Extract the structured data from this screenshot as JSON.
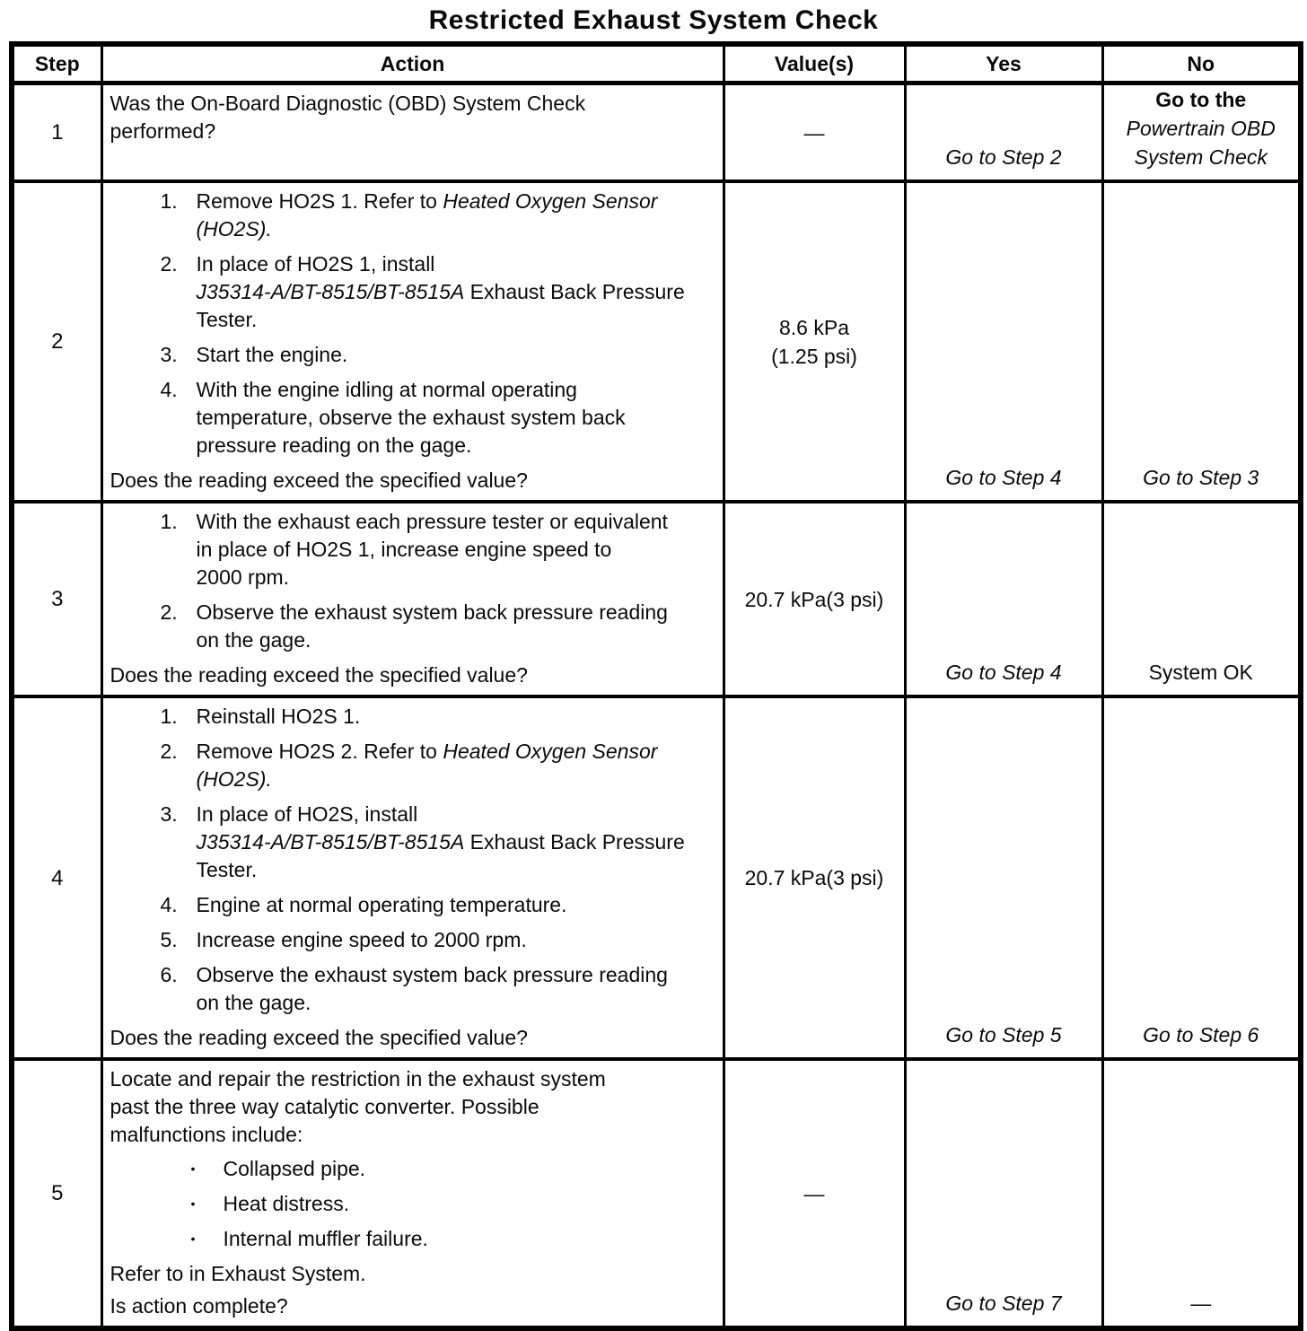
{
  "title": "Restricted Exhaust System Check",
  "bullet_glyph": "•",
  "table": {
    "headers": [
      "Step",
      "Action",
      "Value(s)",
      "Yes",
      "No"
    ],
    "rows": [
      {
        "step": "1",
        "action": {
          "intro": [
            {
              "text": "Was the On-Board Diagnostic (OBD) System Check\nperformed?",
              "style": "normal"
            }
          ],
          "list": null,
          "outro": []
        },
        "value": [
          "—"
        ],
        "yes": [
          {
            "text": "Go to Step 2",
            "style": "italic"
          }
        ],
        "no": [
          {
            "text": "Go to the",
            "style": "bold"
          },
          {
            "text": "Powertrain OBD",
            "style": "italic"
          },
          {
            "text": "System Check",
            "style": "italic"
          }
        ]
      },
      {
        "step": "2",
        "action": {
          "intro": null,
          "list": {
            "marker": "decimal",
            "items": [
              [
                {
                  "text": "Remove HO2S 1. Refer to ",
                  "style": "normal"
                },
                {
                  "text": "Heated Oxygen Sensor\n(HO2S).",
                  "style": "italic"
                }
              ],
              [
                {
                  "text": "In place of HO2S 1, install\n",
                  "style": "normal"
                },
                {
                  "text": "J35314-A/BT-8515/BT-8515A",
                  "style": "italic"
                },
                {
                  "text": " Exhaust Back Pressure\nTester.",
                  "style": "normal"
                }
              ],
              [
                {
                  "text": "Start the engine.",
                  "style": "normal"
                }
              ],
              [
                {
                  "text": "With the engine idling at normal operating\ntemperature, observe the exhaust system back\npressure reading on the gage.",
                  "style": "normal"
                }
              ]
            ]
          },
          "outro": [
            "Does the reading exceed the specified value?"
          ]
        },
        "value": [
          "8.6 kPa",
          "(1.25 psi)"
        ],
        "yes": [
          {
            "text": "Go to Step 4",
            "style": "italic"
          }
        ],
        "no": [
          {
            "text": "Go to Step 3",
            "style": "italic"
          }
        ]
      },
      {
        "step": "3",
        "action": {
          "intro": null,
          "list": {
            "marker": "decimal",
            "items": [
              [
                {
                  "text": "With the exhaust each pressure tester or equivalent\nin place of HO2S 1, increase engine speed to\n2000 rpm.",
                  "style": "normal"
                }
              ],
              [
                {
                  "text": "Observe the exhaust system back pressure reading\non the gage.",
                  "style": "normal"
                }
              ]
            ]
          },
          "outro": [
            "Does the reading exceed the specified value?"
          ]
        },
        "value": [
          "20.7 kPa(3 psi)"
        ],
        "yes": [
          {
            "text": "Go to Step 4",
            "style": "italic"
          }
        ],
        "no": [
          {
            "text": "System OK",
            "style": "normal"
          }
        ]
      },
      {
        "step": "4",
        "action": {
          "intro": null,
          "list": {
            "marker": "decimal",
            "items": [
              [
                {
                  "text": "Reinstall HO2S 1.",
                  "style": "normal"
                }
              ],
              [
                {
                  "text": "Remove HO2S 2. Refer to ",
                  "style": "normal"
                },
                {
                  "text": "Heated Oxygen Sensor\n(HO2S).",
                  "style": "italic"
                }
              ],
              [
                {
                  "text": "In place of HO2S, install\n",
                  "style": "normal"
                },
                {
                  "text": "J35314-A/BT-8515/BT-8515A",
                  "style": "italic"
                },
                {
                  "text": " Exhaust Back Pressure\nTester.",
                  "style": "normal"
                }
              ],
              [
                {
                  "text": "Engine at normal operating temperature.",
                  "style": "normal"
                }
              ],
              [
                {
                  "text": "Increase engine speed to 2000 rpm.",
                  "style": "normal"
                }
              ],
              [
                {
                  "text": "Observe the exhaust system back pressure reading\non the gage.",
                  "style": "normal"
                }
              ]
            ]
          },
          "outro": [
            "Does the reading exceed the specified value?"
          ]
        },
        "value": [
          "20.7 kPa(3 psi)"
        ],
        "yes": [
          {
            "text": "Go to Step 5",
            "style": "italic"
          }
        ],
        "no": [
          {
            "text": "Go to Step 6",
            "style": "italic"
          }
        ]
      },
      {
        "step": "5",
        "action": {
          "intro": [
            {
              "text": "Locate and repair the restriction in the exhaust system\npast the three way catalytic converter. Possible\nmalfunctions include:",
              "style": "normal"
            }
          ],
          "list": {
            "marker": "bullet",
            "items": [
              [
                {
                  "text": "Collapsed pipe.",
                  "style": "normal"
                }
              ],
              [
                {
                  "text": "Heat distress.",
                  "style": "normal"
                }
              ],
              [
                {
                  "text": "Internal muffler failure.",
                  "style": "normal"
                }
              ]
            ]
          },
          "outro": [
            "Refer to in Exhaust System.",
            "Is action complete?"
          ]
        },
        "value": [
          "—"
        ],
        "yes": [
          {
            "text": "Go to Step 7",
            "style": "italic"
          }
        ],
        "no": [
          {
            "text": "—",
            "style": "normal"
          }
        ]
      }
    ]
  }
}
